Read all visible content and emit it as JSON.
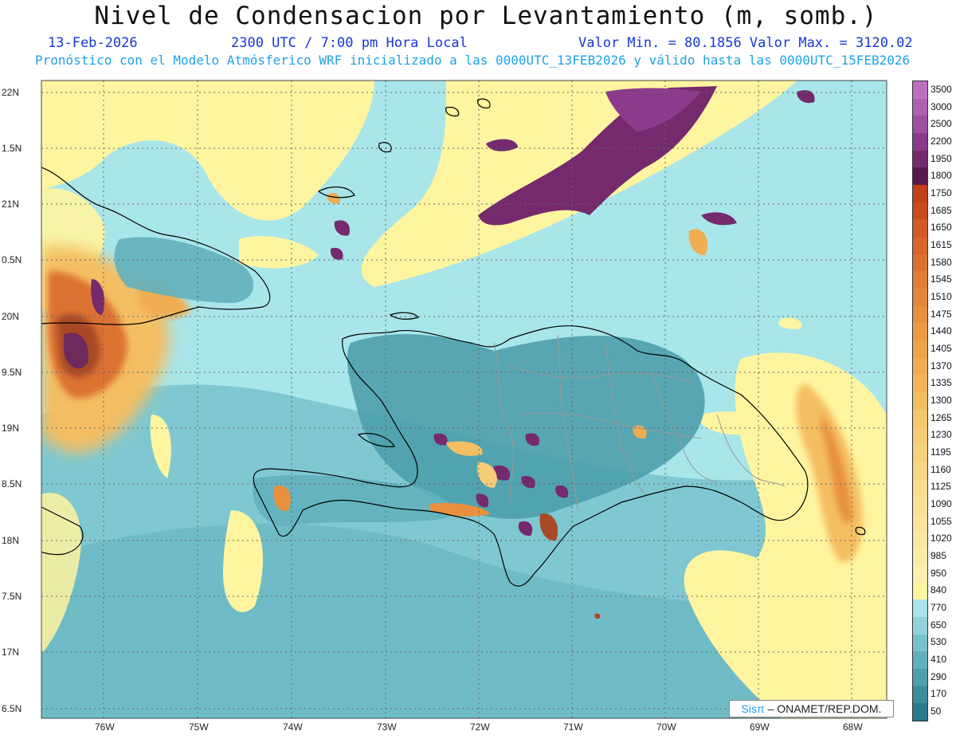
{
  "title": "Nivel de Condensacion por Levantamiento (m, somb.)",
  "date": "13-Feb-2026",
  "time": "2300 UTC / 7:00 pm Hora Local",
  "value_range": "Valor Min. = 80.1856  Valor Max. = 3120.02",
  "model_info": "Pronóstico con el Modelo Atmósferico WRF inicializado a las 0000UTC_13FEB2026 y válido hasta las  0000UTC_15FEB2026",
  "lat_labels": [
    "22N",
    "1.5N",
    "21N",
    "0.5N",
    "20N",
    "9.5N",
    "19N",
    "8.5N",
    "18N",
    "7.5N",
    "17N",
    "6.5N"
  ],
  "lon_labels": [
    "76W",
    "75W",
    "74W",
    "73W",
    "72W",
    "71W",
    "70W",
    "69W",
    "68W"
  ],
  "legend": {
    "labels": [
      "3500",
      "3000",
      "2500",
      "2200",
      "1950",
      "1800",
      "1750",
      "1685",
      "1650",
      "1615",
      "1580",
      "1545",
      "1510",
      "1475",
      "1440",
      "1405",
      "1370",
      "1335",
      "1300",
      "1265",
      "1230",
      "1195",
      "1160",
      "1125",
      "1090",
      "1055",
      "1020",
      "985",
      "950",
      "840",
      "770",
      "650",
      "530",
      "410",
      "290",
      "170",
      "50"
    ],
    "colors": [
      "#c070c0",
      "#b060b0",
      "#a04ea0",
      "#8c3a8c",
      "#742a6c",
      "#5a1a4c",
      "#c0401a",
      "#c84c20",
      "#d05a26",
      "#d6662c",
      "#dc7232",
      "#e07c36",
      "#e4863a",
      "#e8903e",
      "#ec9a44",
      "#eea44a",
      "#f0ae52",
      "#f2b65a",
      "#f4be62",
      "#f5c66c",
      "#f6cc76",
      "#f7d27e",
      "#f8d886",
      "#f9dc8e",
      "#fae096",
      "#fbe49c",
      "#fce8a2",
      "#fdeca8",
      "#fef0ae",
      "#fff5a0",
      "#a8e6ea",
      "#90d4da",
      "#78c2cc",
      "#62b0bc",
      "#4e9eac",
      "#3c8c9c",
      "#2a7a8c"
    ]
  },
  "credit": {
    "brand": "Sisπ",
    "text": "– ONAMET/REP.DOM."
  }
}
